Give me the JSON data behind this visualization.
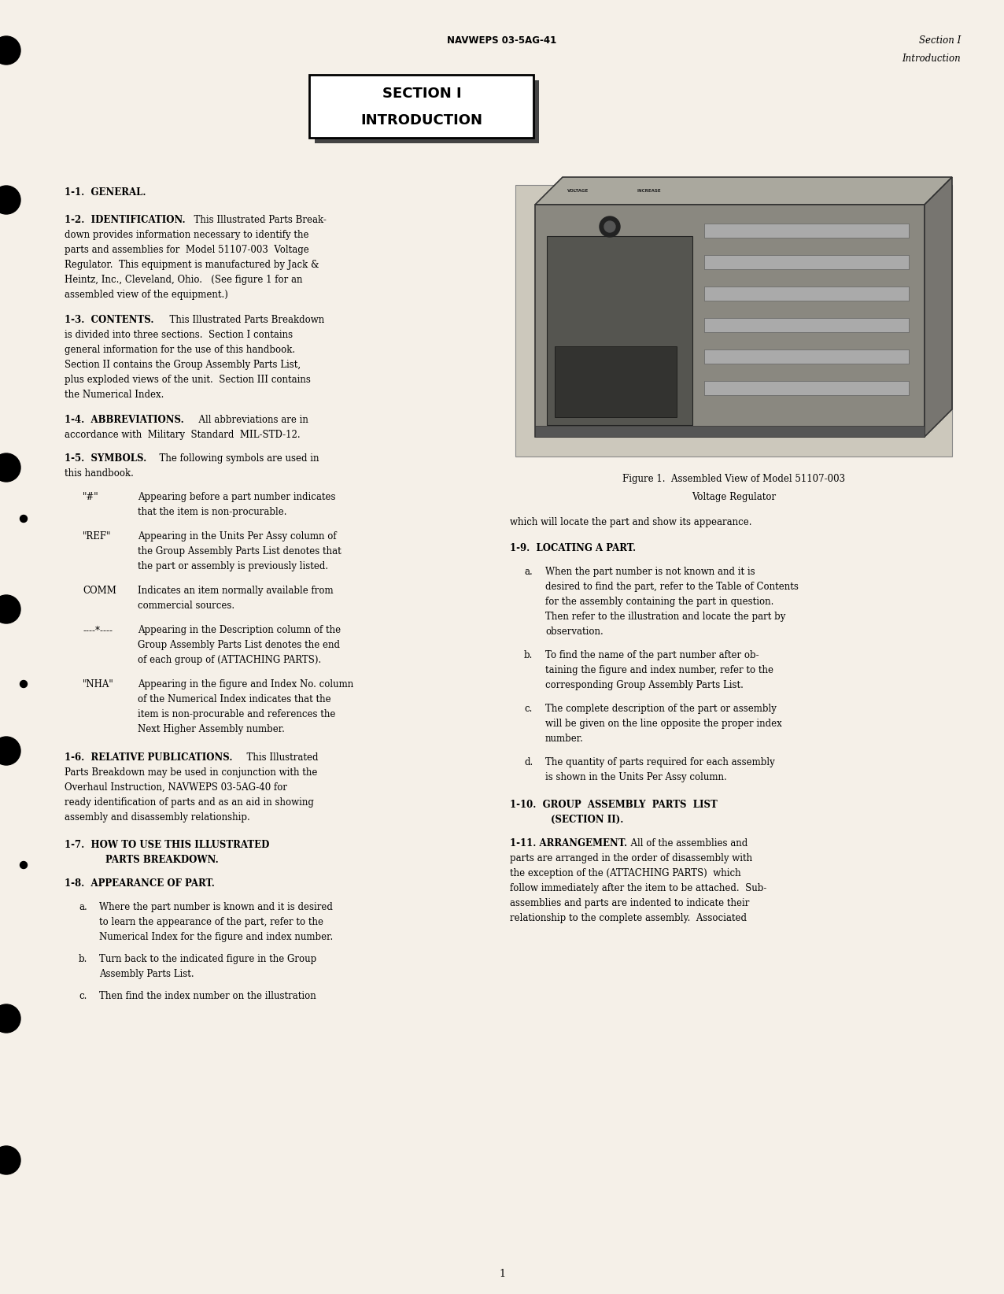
{
  "bg_color": "#f5f0e8",
  "page_width": 12.76,
  "page_height": 16.44,
  "header_center": "NAVWEPS 03-5AG-41",
  "header_right_line1": "Section I",
  "header_right_line2": "Introduction",
  "section_title_line1": "SECTION I",
  "section_title_line2": "INTRODUCTION",
  "footer_page": "1",
  "figure_caption_line1": "Figure 1.  Assembled View of Model 51107-003",
  "figure_caption_line2": "Voltage Regulator"
}
